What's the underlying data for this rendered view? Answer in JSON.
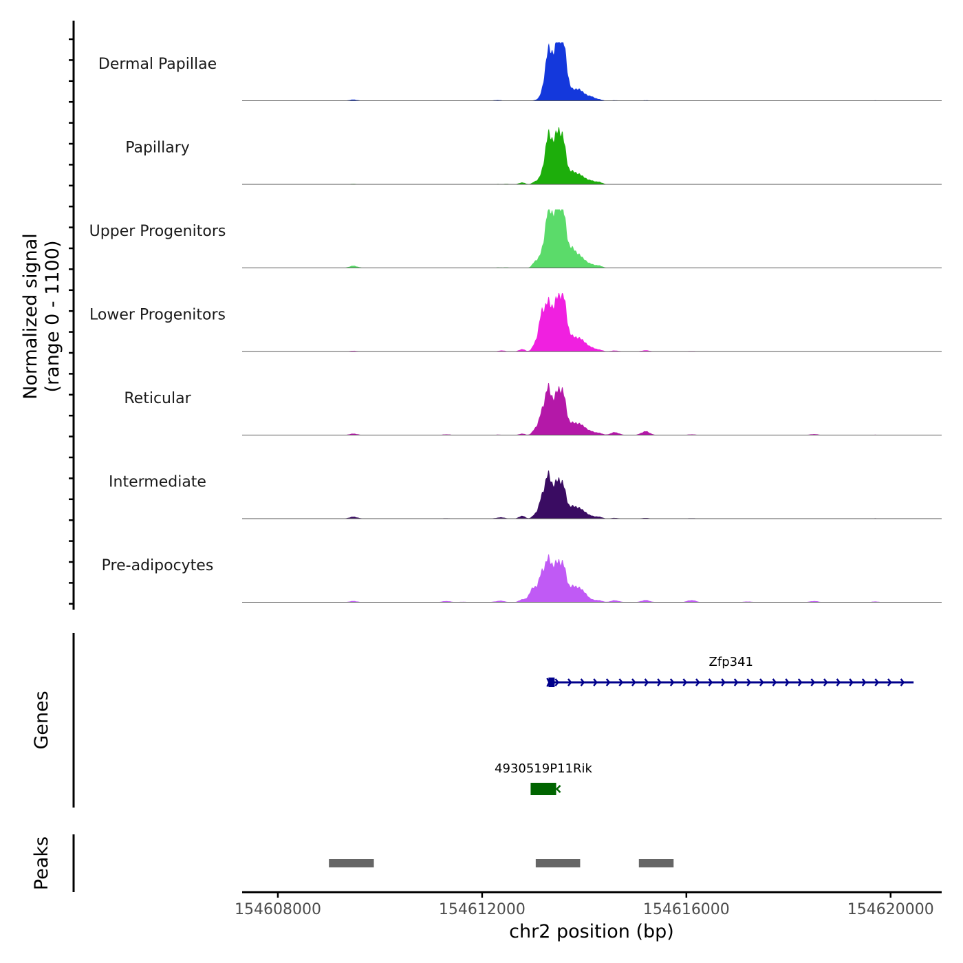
{
  "chart_data": {
    "type": "area",
    "title": "",
    "signal_axis_label_line1": "Normalized signal",
    "signal_axis_label_line2": "(range 0 - 1100)",
    "signal_range": [
      0,
      1100
    ],
    "xlabel": "chr2 position (bp)",
    "xlim": [
      154607300,
      154621000
    ],
    "x_ticks": [
      154608000,
      154612000,
      154616000,
      154620000
    ],
    "x_tick_labels": [
      "154608000",
      "154612000",
      "154616000",
      "154620000"
    ],
    "bump_halfwidth_bp": 60,
    "background_x": [
      154609480,
      154611300,
      154611630,
      154612300,
      154614600,
      154615200,
      154616100,
      154617200,
      154618500,
      154619700
    ],
    "tracks": [
      {
        "name": "Dermal Papillae",
        "color": "#1438DC",
        "main_peaks": [
          [
            154613050,
            12
          ],
          [
            154613170,
            90
          ],
          [
            154613280,
            870
          ],
          [
            154613390,
            760
          ],
          [
            154613500,
            900
          ],
          [
            154613580,
            730
          ],
          [
            154613650,
            420
          ],
          [
            154613760,
            130
          ],
          [
            154613870,
            230
          ],
          [
            154614000,
            150
          ],
          [
            154614150,
            90
          ],
          [
            154614300,
            30
          ]
        ],
        "background": [
          25,
          5,
          5,
          15,
          10,
          10,
          8,
          5,
          5,
          8
        ]
      },
      {
        "name": "Papillary",
        "color": "#1DAE0B",
        "main_peaks": [
          [
            154612480,
            10
          ],
          [
            154612780,
            40
          ],
          [
            154613050,
            60
          ],
          [
            154613170,
            140
          ],
          [
            154613280,
            850
          ],
          [
            154613390,
            700
          ],
          [
            154613500,
            780
          ],
          [
            154613580,
            600
          ],
          [
            154613650,
            230
          ],
          [
            154613760,
            190
          ],
          [
            154613870,
            200
          ],
          [
            154614000,
            140
          ],
          [
            154614150,
            80
          ],
          [
            154614300,
            50
          ]
        ],
        "background": [
          10,
          5,
          5,
          8,
          5,
          5,
          5,
          5,
          5,
          5
        ]
      },
      {
        "name": "Upper Progenitors",
        "color": "#5BDB6A",
        "main_peaks": [
          [
            154612480,
            10
          ],
          [
            154613050,
            140
          ],
          [
            154613170,
            210
          ],
          [
            154613280,
            980
          ],
          [
            154613390,
            880
          ],
          [
            154613500,
            890
          ],
          [
            154613580,
            720
          ],
          [
            154613650,
            370
          ],
          [
            154613760,
            300
          ],
          [
            154613870,
            260
          ],
          [
            154614000,
            170
          ],
          [
            154614150,
            80
          ],
          [
            154614300,
            50
          ]
        ],
        "background": [
          45,
          5,
          5,
          10,
          5,
          5,
          5,
          5,
          5,
          5
        ]
      },
      {
        "name": "Lower Progenitors",
        "color": "#F020E0",
        "main_peaks": [
          [
            154612400,
            20
          ],
          [
            154612780,
            50
          ],
          [
            154613050,
            170
          ],
          [
            154613170,
            700
          ],
          [
            154613280,
            780
          ],
          [
            154613390,
            720
          ],
          [
            154613500,
            790
          ],
          [
            154613580,
            690
          ],
          [
            154613650,
            420
          ],
          [
            154613760,
            200
          ],
          [
            154613870,
            260
          ],
          [
            154614000,
            200
          ],
          [
            154614150,
            90
          ],
          [
            154614300,
            40
          ]
        ],
        "background": [
          15,
          5,
          5,
          5,
          20,
          25,
          10,
          5,
          5,
          5
        ]
      },
      {
        "name": "Reticular",
        "color": "#B418A8",
        "main_peaks": [
          [
            154612780,
            30
          ],
          [
            154613050,
            130
          ],
          [
            154613170,
            380
          ],
          [
            154613280,
            820
          ],
          [
            154613390,
            560
          ],
          [
            154613500,
            650
          ],
          [
            154613580,
            560
          ],
          [
            154613650,
            240
          ],
          [
            154613760,
            170
          ],
          [
            154613870,
            220
          ],
          [
            154614000,
            170
          ],
          [
            154614150,
            80
          ],
          [
            154614300,
            45
          ]
        ],
        "background": [
          30,
          15,
          8,
          10,
          60,
          80,
          15,
          8,
          20,
          8
        ]
      },
      {
        "name": "Intermediate",
        "color": "#3A0C62",
        "main_peaks": [
          [
            154612400,
            20
          ],
          [
            154612780,
            60
          ],
          [
            154613050,
            90
          ],
          [
            154613170,
            360
          ],
          [
            154613280,
            760
          ],
          [
            154613390,
            520
          ],
          [
            154613500,
            560
          ],
          [
            154613580,
            430
          ],
          [
            154613650,
            200
          ],
          [
            154613760,
            180
          ],
          [
            154613870,
            210
          ],
          [
            154614000,
            150
          ],
          [
            154614150,
            60
          ],
          [
            154614300,
            40
          ]
        ],
        "background": [
          40,
          10,
          8,
          15,
          15,
          15,
          10,
          8,
          8,
          8
        ]
      },
      {
        "name": "Pre-adipocytes",
        "color": "#C05AF5",
        "main_peaks": [
          [
            154612400,
            20
          ],
          [
            154612780,
            60
          ],
          [
            154612950,
            180
          ],
          [
            154613050,
            240
          ],
          [
            154613170,
            500
          ],
          [
            154613280,
            710
          ],
          [
            154613390,
            600
          ],
          [
            154613500,
            560
          ],
          [
            154613580,
            480
          ],
          [
            154613650,
            260
          ],
          [
            154613760,
            230
          ],
          [
            154613870,
            280
          ],
          [
            154614000,
            210
          ],
          [
            154614150,
            60
          ],
          [
            154614300,
            40
          ]
        ],
        "background": [
          25,
          25,
          10,
          20,
          40,
          45,
          45,
          15,
          25,
          15
        ]
      }
    ],
    "genes_label": "Genes",
    "genes": [
      {
        "name": "Zfp341",
        "start": 154613300,
        "end": 154620450,
        "strand": "+",
        "color": "#00008B",
        "utr_start": 154613300,
        "utr_end": 154613420
      },
      {
        "name": "4930519P11Rik",
        "start": 154612950,
        "end": 154613450,
        "strand": "-",
        "color": "#006400"
      }
    ],
    "peaks_label": "Peaks",
    "peaks": [
      {
        "start": 154609000,
        "end": 154609880
      },
      {
        "start": 154613050,
        "end": 154613920
      },
      {
        "start": 154615070,
        "end": 154615750
      }
    ],
    "peak_color": "#666666"
  }
}
